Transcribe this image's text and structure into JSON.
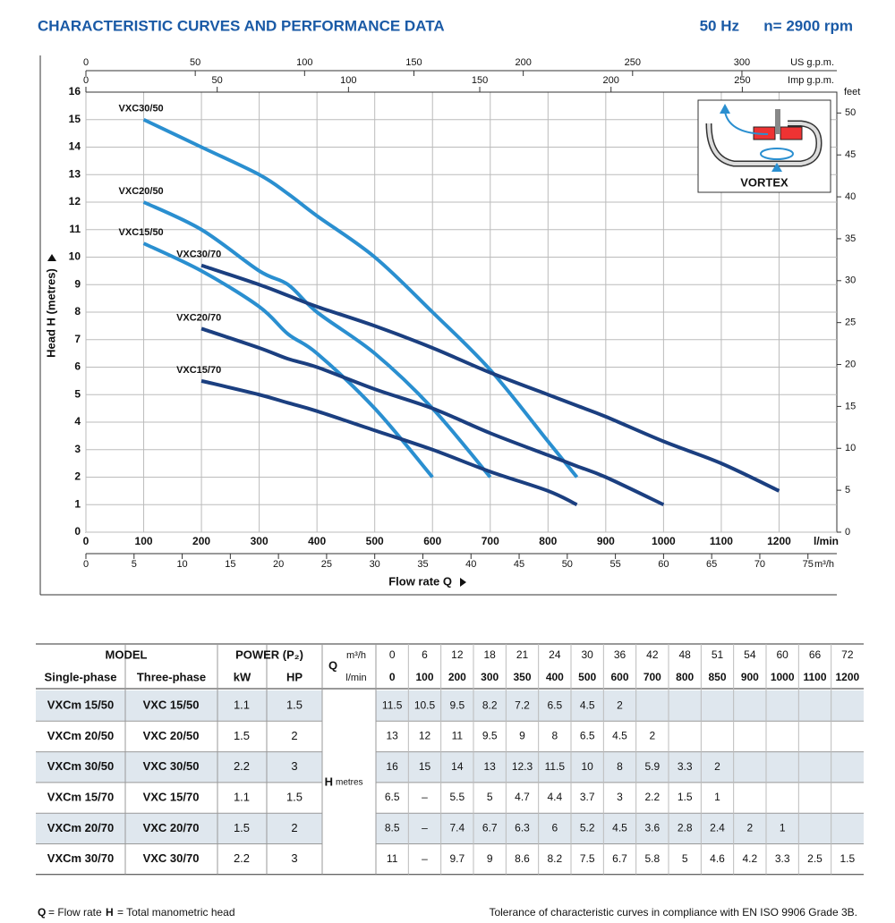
{
  "header": {
    "title": "CHARACTERISTIC CURVES AND PERFORMANCE DATA",
    "frequency": "50 Hz",
    "speed": "n= 2900 rpm"
  },
  "chart_data": {
    "type": "line",
    "ylabel": "Head H  (metres)",
    "xlabel": "Flow rate  Q",
    "xunit": "l/min",
    "xlim": [
      0,
      1300
    ],
    "xticks": [
      0,
      100,
      200,
      300,
      400,
      500,
      600,
      700,
      800,
      900,
      1000,
      1100,
      1200
    ],
    "ylim": [
      0,
      16
    ],
    "yticks": [
      0,
      1,
      2,
      3,
      4,
      5,
      6,
      7,
      8,
      9,
      10,
      11,
      12,
      13,
      14,
      15,
      16
    ],
    "grid": true,
    "us_gpm_axis": {
      "label": "US g.p.m.",
      "lim": [
        0,
        343.4
      ],
      "ticks": [
        0,
        50,
        100,
        150,
        200,
        250,
        300
      ]
    },
    "imp_gpm_axis": {
      "label": "Imp g.p.m.",
      "lim": [
        0,
        286.0
      ],
      "ticks": [
        0,
        50,
        100,
        150,
        200,
        250
      ]
    },
    "m3h_axis": {
      "label": "m³/h",
      "lim": [
        0,
        78
      ],
      "ticks": [
        0,
        5,
        10,
        15,
        20,
        25,
        30,
        35,
        40,
        45,
        50,
        55,
        60,
        65,
        70,
        75
      ]
    },
    "feet_axis": {
      "label": "feet",
      "lim": [
        0,
        52.49
      ],
      "ticks": [
        0,
        5,
        10,
        15,
        20,
        25,
        30,
        35,
        40,
        45,
        50
      ]
    },
    "inset_label": "VORTEX",
    "series": [
      {
        "name": "VXC30/50",
        "color": "#2a8fd0",
        "x": [
          100,
          200,
          300,
          350,
          400,
          500,
          600,
          700,
          800,
          850
        ],
        "values": [
          15,
          14,
          13,
          12.3,
          11.5,
          10,
          8,
          5.9,
          3.3,
          2
        ]
      },
      {
        "name": "VXC20/50",
        "color": "#2a8fd0",
        "x": [
          100,
          200,
          300,
          350,
          400,
          500,
          600,
          700
        ],
        "values": [
          12,
          11,
          9.5,
          9,
          8,
          6.5,
          4.5,
          2
        ]
      },
      {
        "name": "VXC15/50",
        "color": "#2a8fd0",
        "x": [
          100,
          200,
          300,
          350,
          400,
          500,
          600
        ],
        "values": [
          10.5,
          9.5,
          8.2,
          7.2,
          6.5,
          4.5,
          2
        ]
      },
      {
        "name": "VXC30/70",
        "color": "#1b3f80",
        "x": [
          200,
          300,
          350,
          400,
          500,
          600,
          700,
          800,
          850,
          900,
          1000,
          1100,
          1200
        ],
        "values": [
          9.7,
          9,
          8.6,
          8.2,
          7.5,
          6.7,
          5.8,
          5,
          4.6,
          4.2,
          3.3,
          2.5,
          1.5
        ]
      },
      {
        "name": "VXC20/70",
        "color": "#1b3f80",
        "x": [
          200,
          300,
          350,
          400,
          500,
          600,
          700,
          800,
          850,
          900,
          1000
        ],
        "values": [
          7.4,
          6.7,
          6.3,
          6,
          5.2,
          4.5,
          3.6,
          2.8,
          2.4,
          2,
          1
        ]
      },
      {
        "name": "VXC15/70",
        "color": "#1b3f80",
        "x": [
          200,
          300,
          350,
          400,
          500,
          600,
          700,
          800,
          850
        ],
        "values": [
          5.5,
          5,
          4.7,
          4.4,
          3.7,
          3,
          2.2,
          1.5,
          1
        ]
      }
    ]
  },
  "table": {
    "model_header": "MODEL",
    "power_header": "POWER (P₂)",
    "col_headers": [
      "Single-phase",
      "Three-phase",
      "kW",
      "HP"
    ],
    "q_label": "Q",
    "q_units": [
      "m³/h",
      "l/min"
    ],
    "q_m3h": [
      0,
      6,
      12,
      18,
      21,
      24,
      30,
      36,
      42,
      48,
      51,
      54,
      60,
      66,
      72
    ],
    "q_lmin": [
      0,
      100,
      200,
      300,
      350,
      400,
      500,
      600,
      700,
      800,
      850,
      900,
      1000,
      1100,
      1200
    ],
    "h_label": "H",
    "h_unit": "metres",
    "rows": [
      {
        "single": "VXCm 15/50",
        "three": "VXC 15/50",
        "kw": 1.1,
        "hp": 1.5,
        "h": [
          11.5,
          10.5,
          9.5,
          8.2,
          7.2,
          6.5,
          4.5,
          2
        ]
      },
      {
        "single": "VXCm 20/50",
        "three": "VXC 20/50",
        "kw": 1.5,
        "hp": 2,
        "h": [
          13,
          12,
          11,
          9.5,
          9,
          8,
          6.5,
          4.5,
          2
        ]
      },
      {
        "single": "VXCm 30/50",
        "three": "VXC 30/50",
        "kw": 2.2,
        "hp": 3,
        "h": [
          16,
          15,
          14,
          13,
          12.3,
          11.5,
          10,
          8,
          5.9,
          3.3,
          2
        ]
      },
      {
        "single": "VXCm 15/70",
        "three": "VXC 15/70",
        "kw": 1.1,
        "hp": 1.5,
        "h": [
          6.5,
          "–",
          5.5,
          5,
          4.7,
          4.4,
          3.7,
          3,
          2.2,
          1.5,
          1
        ]
      },
      {
        "single": "VXCm 20/70",
        "three": "VXC 20/70",
        "kw": 1.5,
        "hp": 2,
        "h": [
          8.5,
          "–",
          7.4,
          6.7,
          6.3,
          6,
          5.2,
          4.5,
          3.6,
          2.8,
          2.4,
          2,
          1
        ]
      },
      {
        "single": "VXCm 30/70",
        "three": "VXC 30/70",
        "kw": 2.2,
        "hp": 3,
        "h": [
          11,
          "–",
          9.7,
          9,
          8.6,
          8.2,
          7.5,
          6.7,
          5.8,
          5,
          4.6,
          4.2,
          3.3,
          2.5,
          1.5
        ]
      }
    ]
  },
  "footer": {
    "q_key": "Q",
    "q_text": "= Flow rate",
    "h_key": "H",
    "h_text": "= Total manometric head",
    "note": "Tolerance of characteristic curves in compliance with EN ISO 9906 Grade 3B."
  }
}
